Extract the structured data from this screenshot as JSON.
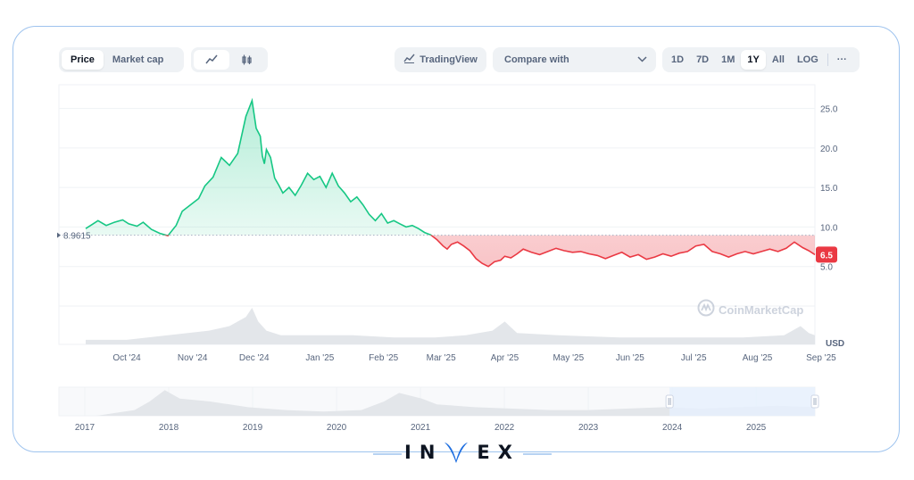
{
  "toolbar": {
    "price_tab": "Price",
    "market_cap_tab": "Market cap",
    "tradingview_label": "TradingView",
    "compare_label": "Compare with",
    "ranges": [
      "1D",
      "7D",
      "1M",
      "1Y",
      "All",
      "LOG"
    ],
    "selected_range": "1Y",
    "more_label": "···"
  },
  "watermark": "CoinMarketCap",
  "brand": {
    "left": "IN",
    "right": "EX"
  },
  "colors": {
    "up": "#16c784",
    "down": "#ea3943",
    "navigator_select": "#e6f0fe"
  },
  "chart_data": {
    "type": "area",
    "baseline": 8.9615,
    "baseline_label": "8.9615",
    "current_price": 6.5,
    "current_label": "6.5",
    "currency": "USD",
    "ylim": [
      0,
      28
    ],
    "yticks": [
      5.0,
      10.0,
      15.0,
      20.0,
      25.0
    ],
    "ytick_labels": [
      "5.0",
      "10.0",
      "15.0",
      "20.0",
      "25.0"
    ],
    "xticks": [
      "Oct '24",
      "Nov '24",
      "Dec '24",
      "Jan '25",
      "Feb '25",
      "Mar '25",
      "Apr '25",
      "May '25",
      "Jun '25",
      "Jul '25",
      "Aug '25",
      "Sep '25"
    ],
    "x_range_days": [
      0,
      355
    ],
    "xtick_days": [
      20,
      52,
      82,
      114,
      145,
      173,
      204,
      235,
      265,
      296,
      327,
      358
    ],
    "series": [
      {
        "x": [
          0,
          3,
          6,
          10,
          14,
          18,
          21,
          25,
          28,
          32,
          36,
          40,
          44,
          47,
          51,
          55,
          58,
          62,
          66,
          70,
          74,
          78,
          81,
          83,
          85,
          86,
          87,
          88,
          90,
          92,
          94,
          96,
          99,
          102,
          105,
          108,
          111,
          114,
          117,
          120,
          123,
          126,
          129,
          132,
          135,
          138,
          141,
          144,
          147,
          150,
          153,
          156,
          159,
          162,
          165,
          168,
          171,
          174,
          176,
          178,
          181,
          184,
          187,
          190,
          193,
          196,
          199,
          202,
          204,
          207,
          210,
          213,
          217,
          221,
          225,
          229,
          233,
          237,
          241,
          245,
          249,
          253,
          257,
          261,
          265,
          269,
          273,
          277,
          281,
          285,
          289,
          293,
          297,
          301,
          305,
          309,
          313,
          317,
          321,
          325,
          329,
          333,
          337,
          341,
          345,
          349,
          352,
          355
        ],
        "y": [
          9.8,
          10.3,
          10.8,
          10.2,
          10.6,
          10.9,
          10.4,
          10.1,
          10.6,
          9.7,
          9.2,
          8.9,
          10.2,
          12.0,
          12.8,
          13.6,
          15.2,
          16.3,
          18.8,
          17.8,
          19.3,
          24.0,
          26.0,
          22.5,
          21.5,
          19.0,
          18.0,
          19.8,
          18.8,
          16.2,
          15.3,
          14.3,
          15.0,
          14.0,
          15.3,
          16.8,
          16.0,
          16.4,
          15.0,
          16.8,
          15.2,
          14.3,
          13.2,
          13.8,
          12.8,
          11.6,
          10.8,
          11.7,
          10.5,
          10.8,
          10.4,
          10.0,
          10.2,
          9.8,
          9.3,
          9.0,
          8.4,
          7.6,
          7.2,
          7.8,
          8.1,
          7.6,
          7.0,
          6.0,
          5.4,
          5.0,
          5.6,
          5.8,
          6.3,
          6.1,
          6.6,
          7.2,
          6.8,
          6.5,
          6.9,
          7.3,
          7.0,
          6.8,
          6.9,
          6.6,
          6.4,
          6.0,
          6.4,
          6.8,
          6.2,
          6.5,
          5.9,
          6.2,
          6.6,
          6.3,
          6.7,
          6.9,
          7.6,
          7.8,
          6.9,
          6.6,
          6.2,
          6.6,
          6.9,
          6.6,
          6.9,
          7.2,
          6.9,
          7.3,
          8.1,
          7.4,
          7.0,
          6.5
        ]
      }
    ],
    "volume_days": [
      0,
      20,
      40,
      60,
      70,
      78,
      81,
      84,
      88,
      95,
      110,
      130,
      150,
      170,
      185,
      198,
      204,
      210,
      230,
      260,
      290,
      320,
      340,
      348,
      352,
      355
    ],
    "volume": [
      1,
      1,
      2,
      3,
      4,
      6,
      8,
      5,
      3,
      2,
      2,
      2,
      1.5,
      1.5,
      2,
      3,
      5,
      2.5,
      2,
      1.5,
      1.5,
      1.5,
      2,
      4,
      2.5,
      2
    ],
    "navigator": {
      "years": [
        "2017",
        "2018",
        "2019",
        "2020",
        "2021",
        "2022",
        "2023",
        "2024",
        "2025"
      ],
      "year_x_rel": [
        0.0,
        0.111,
        0.222,
        0.333,
        0.444,
        0.555,
        0.666,
        0.777,
        0.888
      ],
      "selection_start_rel": 0.888,
      "selection_end_rel": 1.0,
      "profile_rel": [
        0.0,
        0.05,
        0.1,
        0.12,
        0.14,
        0.16,
        0.2,
        0.25,
        0.3,
        0.35,
        0.4,
        0.43,
        0.45,
        0.48,
        0.5,
        0.55,
        0.6,
        0.65,
        0.7,
        0.75,
        0.8,
        0.85,
        0.9,
        0.95,
        1.0
      ],
      "profile_values": [
        0,
        0,
        0.2,
        0.5,
        0.9,
        0.6,
        0.5,
        0.3,
        0.2,
        0.15,
        0.2,
        0.5,
        0.8,
        0.6,
        0.4,
        0.3,
        0.25,
        0.2,
        0.2,
        0.25,
        0.3,
        0.25,
        0.3,
        0.35,
        0.3
      ]
    }
  }
}
